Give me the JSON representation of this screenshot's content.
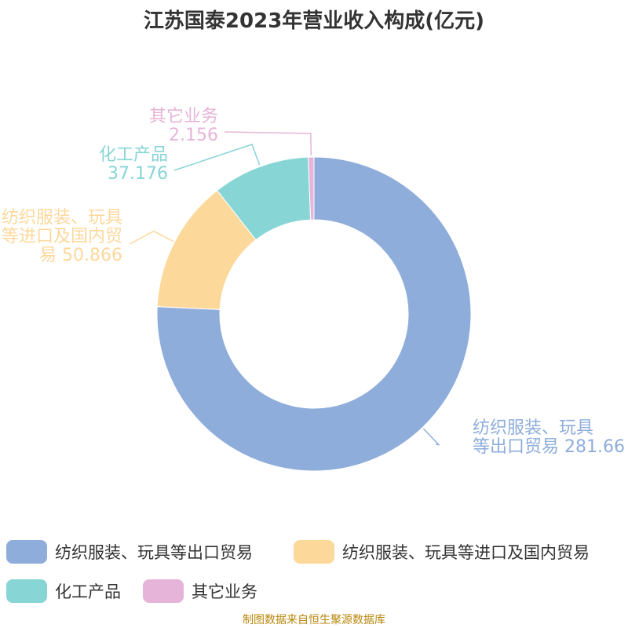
{
  "title": "江苏国泰2023年营业收入构成(亿元)",
  "source": "制图数据来自恒生聚源数据库",
  "chart_data": {
    "type": "pie",
    "donut": true,
    "title": "江苏国泰2023年营业收入构成(亿元)",
    "legend_position": "bottom",
    "series": [
      {
        "name": "纺织服装、玩具等出口贸易",
        "value": 281.66,
        "value_label": "281.66",
        "color": "#8eaddb"
      },
      {
        "name": "纺织服装、玩具等进口及国内贸易",
        "value": 50.866,
        "value_label": "50.866",
        "color": "#fdd89b"
      },
      {
        "name": "化工产品",
        "value": 37.176,
        "value_label": "37.176",
        "color": "#88d5d6"
      },
      {
        "name": "其它业务",
        "value": 2.156,
        "value_label": "2.156",
        "color": "#e6b4d8"
      }
    ]
  }
}
